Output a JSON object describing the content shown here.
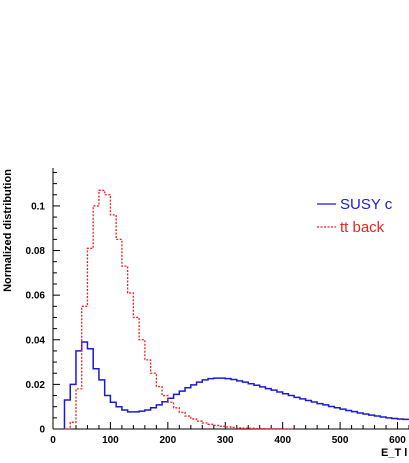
{
  "chart_data": {
    "type": "line",
    "step": true,
    "title": "",
    "xlabel": "E_T l",
    "ylabel": "Normalized distribution",
    "xlim": [
      0,
      620
    ],
    "ylim": [
      0,
      0.117
    ],
    "x_ticks": [
      "0",
      "100",
      "200",
      "300",
      "400",
      "500",
      "600"
    ],
    "x_tick_values": [
      0,
      100,
      200,
      300,
      400,
      500,
      600
    ],
    "y_ticks": [
      "0",
      "0.02",
      "0.04",
      "0.06",
      "0.08",
      "0.1"
    ],
    "y_tick_values": [
      0,
      0.02,
      0.04,
      0.06,
      0.08,
      0.1
    ],
    "grid": false,
    "legend_position": "top-right",
    "series": [
      {
        "name": "SUSY c",
        "color": "#1a1ad6",
        "style": "solid",
        "bin_width": 10,
        "x_start": 20,
        "values": [
          0.013,
          0.02,
          0.035,
          0.039,
          0.036,
          0.027,
          0.022,
          0.015,
          0.012,
          0.01,
          0.0085,
          0.0077,
          0.0077,
          0.008,
          0.0085,
          0.0095,
          0.0108,
          0.0122,
          0.0138,
          0.0155,
          0.017,
          0.0185,
          0.0198,
          0.021,
          0.022,
          0.0226,
          0.0228,
          0.0228,
          0.0226,
          0.0222,
          0.0216,
          0.021,
          0.0203,
          0.0196,
          0.0189,
          0.0181,
          0.0174,
          0.0166,
          0.0158,
          0.015,
          0.0142,
          0.0135,
          0.0128,
          0.0121,
          0.0114,
          0.0108,
          0.0101,
          0.0095,
          0.0089,
          0.0083,
          0.0078,
          0.0072,
          0.0067,
          0.0062,
          0.0058,
          0.0054,
          0.005,
          0.0047,
          0.0045,
          0.0043
        ]
      },
      {
        "name": "tt back",
        "color": "#ee2222",
        "style": "dashed",
        "bin_width": 10,
        "x_start": 20,
        "values": [
          0.0,
          0.003,
          0.018,
          0.055,
          0.081,
          0.1,
          0.107,
          0.105,
          0.096,
          0.085,
          0.073,
          0.061,
          0.05,
          0.04,
          0.031,
          0.025,
          0.019,
          0.015,
          0.012,
          0.0095,
          0.0075,
          0.0058,
          0.0045,
          0.0035,
          0.0027,
          0.0021,
          0.0016,
          0.0012,
          0.0009,
          0.0007,
          0.0005,
          0.0004,
          0.0003,
          0.0002,
          0.0002,
          0.0001,
          0.0001,
          0.0001,
          0.0,
          0.0
        ]
      }
    ]
  }
}
